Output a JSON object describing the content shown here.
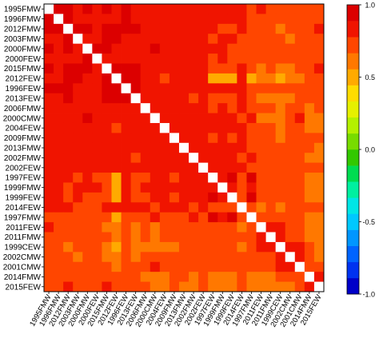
{
  "chart_data": {
    "type": "heatmap",
    "labels": [
      "1995FMW",
      "1996FMW",
      "2012FMW",
      "2003FMW",
      "2000FMW",
      "2000FEW",
      "2015FMW",
      "2012FEW",
      "1996FEW",
      "2013FEW",
      "2006FMW",
      "2000CMW",
      "2004FEW",
      "2009FMW",
      "2013FMW",
      "2002FMW",
      "2002FEW",
      "1997FEW",
      "1999FMW",
      "1999FEW",
      "2014FEW",
      "1997FMW",
      "2011FEW",
      "2011FMW",
      "1999CEW",
      "2002CMW",
      "2001CMW",
      "2014FMW",
      "2015FEW"
    ],
    "colorbar": {
      "range": [
        -1,
        1
      ],
      "ticks": [
        "1.0",
        "0.5",
        "0.0",
        "-0.5",
        "-1.0"
      ],
      "colors": [
        "#0000c8",
        "#0032f0",
        "#0064ff",
        "#0096ff",
        "#00c8ff",
        "#00e6e6",
        "#00f0a0",
        "#00dc50",
        "#32c800",
        "#78dc00",
        "#b4f000",
        "#e6f000",
        "#ffdc00",
        "#ffaa00",
        "#ff7800",
        "#ff4600",
        "#f01400",
        "#dc0000"
      ]
    },
    "diagonal_color": "#ffffff",
    "rows": [
      [
        1.0,
        0.9,
        0.9,
        0.85,
        0.9,
        0.85,
        0.9,
        0.85,
        0.9,
        0.85,
        0.85,
        0.85,
        0.85,
        0.85,
        0.85,
        0.8,
        0.85,
        0.8,
        0.85,
        0.8,
        0.8,
        0.75,
        0.8,
        0.75,
        0.75,
        0.7,
        0.75,
        0.7,
        0.75
      ],
      [
        0.9,
        1.0,
        0.9,
        0.85,
        0.85,
        0.85,
        0.85,
        0.85,
        0.9,
        0.85,
        0.85,
        0.85,
        0.85,
        0.85,
        0.85,
        0.8,
        0.85,
        0.8,
        0.8,
        0.8,
        0.8,
        0.75,
        0.75,
        0.75,
        0.7,
        0.7,
        0.7,
        0.7,
        0.7
      ],
      [
        0.9,
        0.9,
        1.0,
        0.9,
        0.9,
        0.85,
        0.95,
        0.95,
        0.9,
        0.9,
        0.85,
        0.85,
        0.8,
        0.85,
        0.85,
        0.8,
        0.8,
        0.8,
        0.75,
        0.75,
        0.8,
        0.75,
        0.7,
        0.7,
        0.65,
        0.7,
        0.7,
        0.75,
        0.8
      ],
      [
        0.85,
        0.85,
        0.9,
        1.0,
        0.85,
        0.85,
        0.9,
        0.9,
        0.85,
        0.85,
        0.85,
        0.8,
        0.85,
        0.85,
        0.8,
        0.8,
        0.85,
        0.75,
        0.8,
        0.8,
        0.75,
        0.75,
        0.7,
        0.7,
        0.7,
        0.65,
        0.7,
        0.7,
        0.7
      ],
      [
        0.9,
        0.85,
        0.9,
        0.85,
        1.0,
        0.9,
        0.9,
        0.85,
        0.85,
        0.85,
        0.8,
        0.9,
        0.85,
        0.8,
        0.85,
        0.85,
        0.8,
        0.8,
        0.8,
        0.75,
        0.75,
        0.75,
        0.75,
        0.7,
        0.75,
        0.7,
        0.7,
        0.7,
        0.7
      ],
      [
        0.85,
        0.85,
        0.85,
        0.85,
        0.9,
        1.0,
        0.85,
        0.85,
        0.85,
        0.85,
        0.8,
        0.85,
        0.85,
        0.8,
        0.8,
        0.8,
        0.8,
        0.75,
        0.8,
        0.75,
        0.75,
        0.75,
        0.7,
        0.7,
        0.7,
        0.7,
        0.7,
        0.7,
        0.7
      ],
      [
        0.9,
        0.85,
        0.95,
        0.9,
        0.9,
        0.85,
        1.0,
        0.95,
        0.9,
        0.9,
        0.85,
        0.85,
        0.8,
        0.85,
        0.8,
        0.8,
        0.8,
        0.75,
        0.75,
        0.75,
        0.8,
        0.7,
        0.65,
        0.7,
        0.6,
        0.65,
        0.7,
        0.75,
        0.8
      ],
      [
        0.85,
        0.85,
        0.95,
        0.9,
        0.85,
        0.85,
        0.95,
        1.0,
        0.9,
        0.9,
        0.85,
        0.8,
        0.75,
        0.85,
        0.8,
        0.8,
        0.8,
        0.55,
        0.55,
        0.55,
        0.8,
        0.55,
        0.6,
        0.6,
        0.55,
        0.65,
        0.65,
        0.7,
        0.75
      ],
      [
        0.9,
        0.9,
        0.9,
        0.85,
        0.85,
        0.85,
        0.9,
        0.9,
        1.0,
        0.9,
        0.85,
        0.85,
        0.85,
        0.85,
        0.85,
        0.8,
        0.85,
        0.8,
        0.8,
        0.8,
        0.8,
        0.75,
        0.75,
        0.75,
        0.7,
        0.7,
        0.7,
        0.7,
        0.7
      ],
      [
        0.85,
        0.85,
        0.9,
        0.85,
        0.85,
        0.85,
        0.9,
        0.9,
        0.9,
        1.0,
        0.85,
        0.8,
        0.8,
        0.85,
        0.85,
        0.75,
        0.8,
        0.7,
        0.75,
        0.7,
        0.8,
        0.7,
        0.6,
        0.65,
        0.6,
        0.65,
        0.7,
        0.7,
        0.7
      ],
      [
        0.85,
        0.85,
        0.85,
        0.85,
        0.8,
        0.8,
        0.85,
        0.85,
        0.85,
        0.85,
        1.0,
        0.85,
        0.85,
        0.85,
        0.85,
        0.8,
        0.85,
        0.75,
        0.8,
        0.75,
        0.8,
        0.7,
        0.7,
        0.7,
        0.65,
        0.7,
        0.7,
        0.65,
        0.7
      ],
      [
        0.85,
        0.85,
        0.85,
        0.8,
        0.9,
        0.85,
        0.85,
        0.8,
        0.85,
        0.8,
        0.85,
        1.0,
        0.85,
        0.8,
        0.85,
        0.85,
        0.85,
        0.8,
        0.8,
        0.8,
        0.75,
        0.8,
        0.6,
        0.6,
        0.6,
        0.75,
        0.8,
        0.65,
        0.6
      ],
      [
        0.85,
        0.85,
        0.8,
        0.85,
        0.85,
        0.85,
        0.8,
        0.75,
        0.85,
        0.8,
        0.85,
        0.85,
        1.0,
        0.85,
        0.85,
        0.85,
        0.85,
        0.8,
        0.85,
        0.8,
        0.8,
        0.75,
        0.7,
        0.7,
        0.65,
        0.7,
        0.7,
        0.65,
        0.65
      ],
      [
        0.85,
        0.85,
        0.85,
        0.85,
        0.8,
        0.8,
        0.85,
        0.85,
        0.85,
        0.85,
        0.85,
        0.8,
        0.85,
        1.0,
        0.85,
        0.8,
        0.85,
        0.75,
        0.8,
        0.75,
        0.8,
        0.7,
        0.7,
        0.7,
        0.65,
        0.7,
        0.7,
        0.7,
        0.7
      ],
      [
        0.85,
        0.85,
        0.85,
        0.8,
        0.85,
        0.8,
        0.8,
        0.8,
        0.85,
        0.85,
        0.85,
        0.85,
        0.85,
        0.85,
        1.0,
        0.85,
        0.85,
        0.8,
        0.85,
        0.8,
        0.8,
        0.75,
        0.7,
        0.7,
        0.7,
        0.7,
        0.75,
        0.7,
        0.65
      ],
      [
        0.8,
        0.8,
        0.8,
        0.8,
        0.85,
        0.8,
        0.8,
        0.8,
        0.8,
        0.75,
        0.8,
        0.85,
        0.85,
        0.8,
        0.85,
        1.0,
        0.85,
        0.85,
        0.85,
        0.85,
        0.75,
        0.85,
        0.75,
        0.75,
        0.7,
        0.75,
        0.75,
        0.65,
        0.65
      ],
      [
        0.85,
        0.85,
        0.8,
        0.85,
        0.8,
        0.8,
        0.8,
        0.8,
        0.85,
        0.8,
        0.85,
        0.85,
        0.85,
        0.85,
        0.85,
        0.85,
        1.0,
        0.8,
        0.85,
        0.8,
        0.8,
        0.75,
        0.75,
        0.7,
        0.7,
        0.7,
        0.75,
        0.7,
        0.7
      ],
      [
        0.8,
        0.8,
        0.8,
        0.75,
        0.8,
        0.75,
        0.75,
        0.55,
        0.8,
        0.7,
        0.75,
        0.8,
        0.8,
        0.75,
        0.8,
        0.85,
        0.8,
        1.0,
        0.85,
        0.9,
        0.7,
        0.9,
        0.75,
        0.75,
        0.75,
        0.75,
        0.75,
        0.65,
        0.6
      ],
      [
        0.85,
        0.8,
        0.75,
        0.8,
        0.8,
        0.8,
        0.75,
        0.55,
        0.8,
        0.75,
        0.8,
        0.8,
        0.85,
        0.8,
        0.85,
        0.85,
        0.85,
        0.85,
        1.0,
        0.85,
        0.75,
        0.85,
        0.75,
        0.75,
        0.7,
        0.75,
        0.75,
        0.65,
        0.65
      ],
      [
        0.8,
        0.8,
        0.75,
        0.8,
        0.75,
        0.75,
        0.75,
        0.55,
        0.8,
        0.7,
        0.75,
        0.8,
        0.8,
        0.75,
        0.8,
        0.85,
        0.8,
        0.9,
        0.85,
        1.0,
        0.7,
        0.9,
        0.75,
        0.75,
        0.75,
        0.75,
        0.75,
        0.65,
        0.6
      ],
      [
        0.8,
        0.8,
        0.8,
        0.75,
        0.75,
        0.75,
        0.8,
        0.8,
        0.8,
        0.8,
        0.8,
        0.75,
        0.8,
        0.8,
        0.8,
        0.75,
        0.8,
        0.7,
        0.75,
        0.7,
        1.0,
        0.7,
        0.65,
        0.7,
        0.65,
        0.7,
        0.7,
        0.75,
        0.75
      ],
      [
        0.75,
        0.75,
        0.75,
        0.75,
        0.75,
        0.75,
        0.7,
        0.55,
        0.75,
        0.7,
        0.7,
        0.8,
        0.75,
        0.7,
        0.75,
        0.85,
        0.75,
        0.9,
        0.85,
        0.9,
        0.7,
        1.0,
        0.75,
        0.75,
        0.75,
        0.75,
        0.75,
        0.65,
        0.6
      ],
      [
        0.8,
        0.75,
        0.7,
        0.7,
        0.75,
        0.7,
        0.65,
        0.6,
        0.75,
        0.6,
        0.7,
        0.6,
        0.7,
        0.7,
        0.7,
        0.75,
        0.75,
        0.75,
        0.75,
        0.75,
        0.65,
        0.75,
        1.0,
        0.85,
        0.8,
        0.75,
        0.7,
        0.65,
        0.6
      ],
      [
        0.75,
        0.75,
        0.7,
        0.7,
        0.7,
        0.7,
        0.7,
        0.6,
        0.75,
        0.65,
        0.7,
        0.6,
        0.7,
        0.7,
        0.7,
        0.75,
        0.7,
        0.75,
        0.75,
        0.75,
        0.7,
        0.75,
        0.85,
        1.0,
        0.8,
        0.75,
        0.7,
        0.65,
        0.6
      ],
      [
        0.75,
        0.7,
        0.65,
        0.7,
        0.75,
        0.7,
        0.6,
        0.55,
        0.7,
        0.6,
        0.65,
        0.6,
        0.65,
        0.65,
        0.7,
        0.7,
        0.7,
        0.75,
        0.7,
        0.75,
        0.65,
        0.75,
        0.8,
        0.8,
        1.0,
        0.85,
        0.8,
        0.7,
        0.6
      ],
      [
        0.7,
        0.7,
        0.7,
        0.65,
        0.7,
        0.7,
        0.65,
        0.65,
        0.7,
        0.65,
        0.7,
        0.75,
        0.7,
        0.7,
        0.7,
        0.75,
        0.7,
        0.75,
        0.75,
        0.75,
        0.7,
        0.75,
        0.75,
        0.75,
        0.85,
        1.0,
        0.85,
        0.7,
        0.65
      ],
      [
        0.75,
        0.7,
        0.7,
        0.7,
        0.7,
        0.7,
        0.7,
        0.65,
        0.7,
        0.7,
        0.7,
        0.8,
        0.7,
        0.7,
        0.75,
        0.75,
        0.75,
        0.75,
        0.75,
        0.75,
        0.7,
        0.75,
        0.7,
        0.7,
        0.8,
        0.85,
        1.0,
        0.75,
        0.7
      ],
      [
        0.7,
        0.7,
        0.75,
        0.7,
        0.7,
        0.7,
        0.75,
        0.7,
        0.7,
        0.7,
        0.65,
        0.65,
        0.65,
        0.7,
        0.7,
        0.65,
        0.7,
        0.65,
        0.65,
        0.65,
        0.75,
        0.65,
        0.65,
        0.65,
        0.7,
        0.7,
        0.75,
        1.0,
        0.85
      ],
      [
        0.75,
        0.7,
        0.8,
        0.7,
        0.7,
        0.7,
        0.8,
        0.75,
        0.7,
        0.7,
        0.7,
        0.6,
        0.65,
        0.7,
        0.65,
        0.65,
        0.7,
        0.6,
        0.65,
        0.6,
        0.75,
        0.6,
        0.6,
        0.6,
        0.6,
        0.65,
        0.7,
        0.85,
        1.0
      ]
    ]
  }
}
